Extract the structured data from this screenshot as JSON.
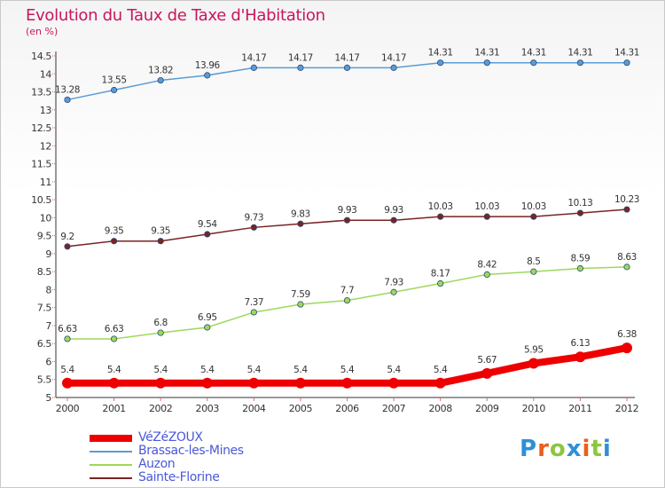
{
  "header": {
    "title": "Evolution du Taux de Taxe d'Habitation",
    "subtitle": "(en %)"
  },
  "brand": {
    "letters": [
      "P",
      "r",
      "o",
      "x",
      "i",
      "t",
      "i"
    ],
    "colors": [
      "#2f8fd8",
      "#e8601c",
      "#8cc63f",
      "#2f8fd8",
      "#e8601c",
      "#8cc63f",
      "#2f8fd8"
    ]
  },
  "chart_data": {
    "type": "line",
    "x": [
      "2000",
      "2001",
      "2002",
      "2003",
      "2004",
      "2005",
      "2006",
      "2007",
      "2008",
      "2009",
      "2010",
      "2011",
      "2012"
    ],
    "ylim": [
      5,
      14.5
    ],
    "yticks": [
      "5",
      "5.5",
      "6",
      "6.5",
      "7",
      "7.5",
      "8",
      "8.5",
      "9",
      "9.5",
      "10",
      "10.5",
      "11",
      "11.5",
      "12",
      "12.5",
      "13",
      "13.5",
      "14",
      "14.5"
    ],
    "grid": false,
    "legend_position": "bottom-left",
    "series": [
      {
        "name": "VéZéZOUX",
        "color": "#ee0000",
        "values": [
          5.4,
          5.4,
          5.4,
          5.4,
          5.4,
          5.4,
          5.4,
          5.4,
          5.4,
          5.67,
          5.95,
          6.13,
          6.38
        ],
        "labels": [
          "5.4",
          "5.4",
          "5.4",
          "5.4",
          "5.4",
          "5.4",
          "5.4",
          "5.4",
          "5.4",
          "5.67",
          "5.95",
          "6.13",
          "6.38"
        ]
      },
      {
        "name": "Brassac-les-Mines",
        "color": "#5b9bd5",
        "values": [
          13.28,
          13.55,
          13.82,
          13.96,
          14.17,
          14.17,
          14.17,
          14.17,
          14.31,
          14.31,
          14.31,
          14.31,
          14.31
        ],
        "labels": [
          "13.28",
          "13.55",
          "13.82",
          "13.96",
          "14.17",
          "14.17",
          "14.17",
          "14.17",
          "14.31",
          "14.31",
          "14.31",
          "14.31",
          "14.31"
        ]
      },
      {
        "name": "Auzon",
        "color": "#9ed85a",
        "values": [
          6.63,
          6.63,
          6.8,
          6.95,
          7.37,
          7.59,
          7.7,
          7.93,
          8.17,
          8.42,
          8.5,
          8.59,
          8.63
        ],
        "labels": [
          "6.63",
          "6.63",
          "6.8",
          "6.95",
          "7.37",
          "7.59",
          "7.7",
          "7.93",
          "8.17",
          "8.42",
          "8.5",
          "8.59",
          "8.63"
        ]
      },
      {
        "name": "Sainte-Florine",
        "color": "#7a2323",
        "values": [
          9.2,
          9.35,
          9.35,
          9.54,
          9.73,
          9.83,
          9.93,
          9.93,
          10.03,
          10.03,
          10.03,
          10.13,
          10.23
        ],
        "labels": [
          "9.2",
          "9.35",
          "9.35",
          "9.54",
          "9.73",
          "9.83",
          "9.93",
          "9.93",
          "10.03",
          "10.03",
          "10.03",
          "10.13",
          "10.23"
        ]
      }
    ]
  }
}
